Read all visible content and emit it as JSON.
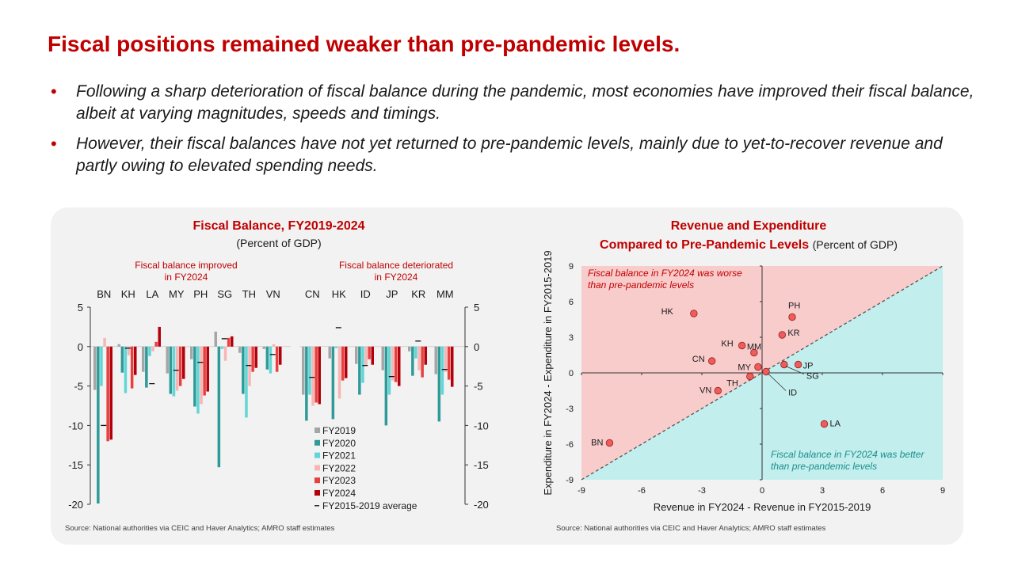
{
  "slide": {
    "title": "Fiscal positions remained weaker than pre-pandemic levels.",
    "bullets": [
      "Following a sharp deterioration of fiscal balance during the pandemic, most economies have improved their fiscal balance, albeit at varying magnitudes, speeds and timings.",
      "However, their fiscal balances have not yet returned to pre-pandemic levels, mainly due to yet-to-recover revenue and partly owing to elevated spending needs."
    ],
    "bullet_marker": "•",
    "colors": {
      "accent": "#c00000",
      "panel": "#f2f2f2"
    }
  },
  "chart_data": [
    {
      "type": "bar",
      "title": "Fiscal Balance, FY2019-2024",
      "subtitle": "(Percent of GDP)",
      "group_labels": [
        "Fiscal balance improved in FY2024",
        "Fiscal balance deteriorated in FY2024"
      ],
      "categories": [
        "BN",
        "KH",
        "LA",
        "MY",
        "PH",
        "SG",
        "TH",
        "VN",
        "CN",
        "HK",
        "ID",
        "JP",
        "KR",
        "MM"
      ],
      "ylim": [
        -20,
        5
      ],
      "yticks": [
        "5",
        "0",
        "-5",
        "-10",
        "-15",
        "-20"
      ],
      "series": [
        {
          "name": "FY2019",
          "color": "#a6a6a6",
          "values": [
            -5.5,
            0.3,
            -3.2,
            -3.4,
            -1.6,
            1.9,
            -0.8,
            -0.3,
            -6.1,
            -1.5,
            -2.2,
            -3.0,
            -0.6,
            -3.5
          ]
        },
        {
          "name": "FY2020",
          "color": "#2e9b99",
          "values": [
            -19.9,
            -3.3,
            -5.2,
            -6.0,
            -7.6,
            -15.3,
            -6.0,
            -2.9,
            -9.4,
            -9.2,
            -6.1,
            -10.0,
            -3.7,
            -9.5
          ]
        },
        {
          "name": "FY2021",
          "color": "#62d6d6",
          "values": [
            -5.0,
            -5.9,
            -1.2,
            -6.3,
            -8.5,
            -0.3,
            -9.0,
            -3.4,
            -6.1,
            -0.2,
            -4.6,
            -6.1,
            -1.5,
            -6.1
          ]
        },
        {
          "name": "FY2022",
          "color": "#f7b6b6",
          "values": [
            1.1,
            -1.1,
            -0.6,
            -5.6,
            -7.3,
            -1.8,
            -5.0,
            0.3,
            -7.5,
            -6.6,
            -2.4,
            -4.3,
            -3.0,
            -3.2
          ]
        },
        {
          "name": "FY2023",
          "color": "#e83f3f",
          "values": [
            -12.0,
            -5.3,
            0.6,
            -5.0,
            -6.2,
            1.1,
            -3.2,
            -3.2,
            -7.1,
            -4.3,
            -1.6,
            -4.5,
            -3.9,
            -4.2
          ]
        },
        {
          "name": "FY2024",
          "color": "#b3000b",
          "values": [
            -11.8,
            -3.6,
            2.5,
            -4.1,
            -5.7,
            1.3,
            -2.7,
            -2.3,
            -7.3,
            -4.0,
            -2.3,
            -5.0,
            -2.3,
            -5.1
          ]
        }
      ],
      "average": {
        "name": "FY2015-2019 average",
        "values": [
          -10.0,
          -0.2,
          -4.7,
          -3.0,
          -2.0,
          1.0,
          -2.4,
          -1.0,
          -3.9,
          2.4,
          -2.4,
          -3.8,
          0.7,
          -2.9
        ]
      },
      "source": "Source: National authorities via CEIC and Haver Analytics; AMRO staff estimates"
    },
    {
      "type": "scatter",
      "title_line1": "Revenue and Expenditure",
      "title_line2": "Compared to Pre-Pandemic Levels",
      "subtitle": "(Percent of GDP)",
      "xlabel": "Revenue in FY2024 - Revenue in FY2015-2019",
      "ylabel": "Expenditure in FY2024 - Expenditure in FY2015-2019",
      "xlim": [
        -9,
        9
      ],
      "ylim": [
        -9,
        9
      ],
      "xticks": [
        "-9",
        "-6",
        "-3",
        "0",
        "3",
        "6",
        "9"
      ],
      "yticks": [
        "9",
        "6",
        "3",
        "0",
        "-3",
        "-6",
        "-9"
      ],
      "points": [
        {
          "label": "HK",
          "x": -3.4,
          "y": 5.0
        },
        {
          "label": "PH",
          "x": 1.5,
          "y": 4.7
        },
        {
          "label": "KR",
          "x": 1.0,
          "y": 3.2
        },
        {
          "label": "KH",
          "x": -1.0,
          "y": 2.3
        },
        {
          "label": "MM",
          "x": -0.4,
          "y": 1.7
        },
        {
          "label": "CN",
          "x": -2.5,
          "y": 1.0
        },
        {
          "label": "MY",
          "x": -0.2,
          "y": 0.5
        },
        {
          "label": "SG",
          "x": 1.1,
          "y": 0.7
        },
        {
          "label": "JP",
          "x": 1.8,
          "y": 0.7
        },
        {
          "label": "ID",
          "x": 0.2,
          "y": 0.1
        },
        {
          "label": "TH",
          "x": -0.6,
          "y": -0.3
        },
        {
          "label": "VN",
          "x": -2.2,
          "y": -1.5
        },
        {
          "label": "LA",
          "x": 3.1,
          "y": -4.3
        },
        {
          "label": "BN",
          "x": -7.6,
          "y": -5.9
        }
      ],
      "region_upper": "Fiscal balance in FY2024 was worse than pre-pandemic levels",
      "region_lower": "Fiscal balance in FY2024 was better than pre-pandemic levels",
      "colors": {
        "upper": "#f9cccc",
        "lower": "#c2eeed",
        "point": "#ee5c5c"
      },
      "source": "Source: National authorities via CEIC and Haver Analytics; AMRO staff estimates"
    }
  ]
}
